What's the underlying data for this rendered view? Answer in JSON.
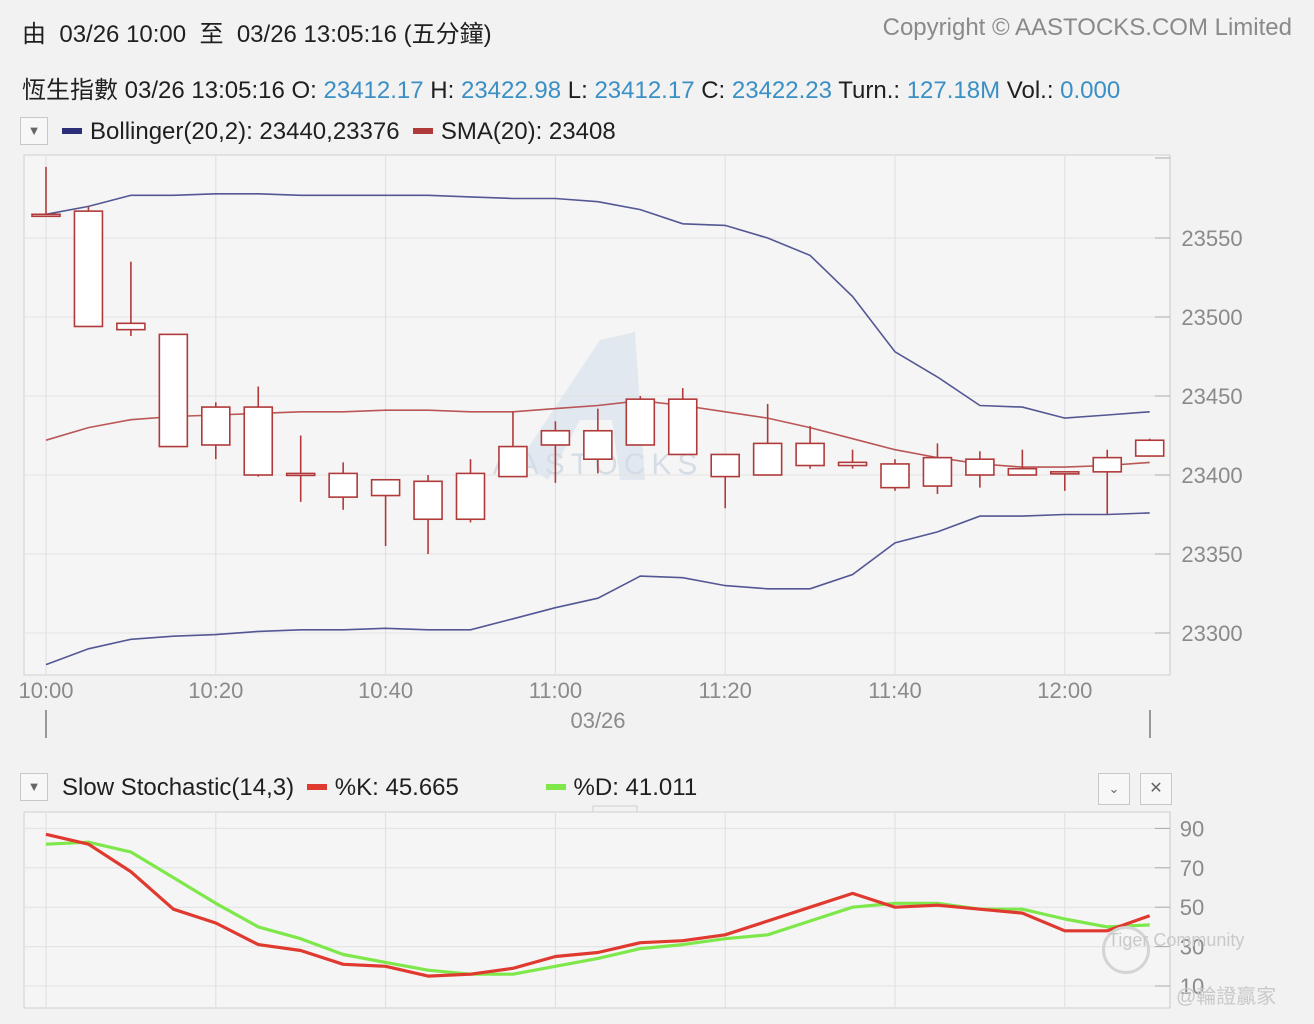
{
  "header": {
    "from_label": "由",
    "from_time": "03/26 10:00",
    "to_label": "至",
    "to_time": "03/26 13:05:16",
    "interval": "(五分鐘)",
    "copyright": "Copyright © AASTOCKS.COM Limited"
  },
  "quote": {
    "index_name": "恆生指數",
    "timestamp": "03/26 13:05:16",
    "open_label": "O:",
    "open": "23412.17",
    "high_label": "H:",
    "high": "23422.98",
    "low_label": "L:",
    "low": "23412.17",
    "close_label": "C:",
    "close": "23422.23",
    "turnover_label": "Turn.:",
    "turnover": "127.18M",
    "volume_label": "Vol.:",
    "volume": "0.000"
  },
  "main_legend": {
    "bollinger": "Bollinger(20,2): 23440,23376",
    "sma": "SMA(20): 23408",
    "bollinger_color": "#2b2f7a",
    "sma_color": "#b03a3a"
  },
  "stoch_legend": {
    "title": "Slow Stochastic(14,3)",
    "k": "%K: 45.665",
    "d": "%D: 41.011",
    "k_color": "#e03a30",
    "d_color": "#7ee84a"
  },
  "watermark": {
    "chart_logo": "AASTOCKS",
    "community": "Tiger Community",
    "author": "@輪證贏家"
  },
  "chart_data": [
    {
      "type": "candlestick",
      "x_ticks": [
        "10:00",
        "10:20",
        "10:40",
        "11:00",
        "11:20",
        "11:40",
        "12:00"
      ],
      "x_date": "03/26",
      "y_ticks": [
        23300,
        23350,
        23400,
        23450,
        23500,
        23550
      ],
      "ylim": [
        23275,
        23600
      ],
      "grid": true,
      "candles": [
        {
          "t": "10:00",
          "o": 23565,
          "h": 23595,
          "l": 23565,
          "c": 23565
        },
        {
          "t": "10:05",
          "o": 23494,
          "h": 23570,
          "l": 23494,
          "c": 23567
        },
        {
          "t": "10:10",
          "o": 23492,
          "h": 23535,
          "l": 23488,
          "c": 23496
        },
        {
          "t": "10:15",
          "o": 23418,
          "h": 23489,
          "l": 23418,
          "c": 23489
        },
        {
          "t": "10:20",
          "o": 23419,
          "h": 23446,
          "l": 23410,
          "c": 23443
        },
        {
          "t": "10:25",
          "o": 23400,
          "h": 23456,
          "l": 23399,
          "c": 23443
        },
        {
          "t": "10:30",
          "o": 23400,
          "h": 23425,
          "l": 23383,
          "c": 23401
        },
        {
          "t": "10:35",
          "o": 23386,
          "h": 23408,
          "l": 23378,
          "c": 23401
        },
        {
          "t": "10:40",
          "o": 23387,
          "h": 23397,
          "l": 23355,
          "c": 23397
        },
        {
          "t": "10:45",
          "o": 23372,
          "h": 23400,
          "l": 23350,
          "c": 23396
        },
        {
          "t": "10:50",
          "o": 23372,
          "h": 23410,
          "l": 23370,
          "c": 23401
        },
        {
          "t": "10:55",
          "o": 23399,
          "h": 23440,
          "l": 23399,
          "c": 23418
        },
        {
          "t": "11:00",
          "o": 23419,
          "h": 23434,
          "l": 23395,
          "c": 23428
        },
        {
          "t": "11:05",
          "o": 23410,
          "h": 23442,
          "l": 23401,
          "c": 23428
        },
        {
          "t": "11:10",
          "o": 23419,
          "h": 23450,
          "l": 23419,
          "c": 23448
        },
        {
          "t": "11:15",
          "o": 23413,
          "h": 23455,
          "l": 23413,
          "c": 23448
        },
        {
          "t": "11:20",
          "o": 23399,
          "h": 23413,
          "l": 23379,
          "c": 23413
        },
        {
          "t": "11:25",
          "o": 23400,
          "h": 23445,
          "l": 23400,
          "c": 23420
        },
        {
          "t": "11:30",
          "o": 23406,
          "h": 23431,
          "l": 23404,
          "c": 23420
        },
        {
          "t": "11:35",
          "o": 23406,
          "h": 23416,
          "l": 23404,
          "c": 23408
        },
        {
          "t": "11:40",
          "o": 23392,
          "h": 23410,
          "l": 23390,
          "c": 23407
        },
        {
          "t": "11:45",
          "o": 23393,
          "h": 23420,
          "l": 23388,
          "c": 23411
        },
        {
          "t": "11:50",
          "o": 23400,
          "h": 23415,
          "l": 23392,
          "c": 23410
        },
        {
          "t": "11:55",
          "o": 23400,
          "h": 23416,
          "l": 23400,
          "c": 23404
        },
        {
          "t": "12:00",
          "o": 23402,
          "h": 23402,
          "l": 23390,
          "c": 23402
        },
        {
          "t": "12:05",
          "o": 23402,
          "h": 23416,
          "l": 23375,
          "c": 23411
        },
        {
          "t": "12:10",
          "o": 23412,
          "h": 23423,
          "l": 23412,
          "c": 23422
        }
      ],
      "series": [
        {
          "values": [
            23565,
            23570,
            23577,
            23577,
            23578,
            23578,
            23577,
            23577,
            23577,
            23577,
            23576,
            23575,
            23575,
            23573,
            23568,
            23559,
            23558,
            23550,
            23539,
            23513,
            23478,
            23462,
            23444,
            23443,
            23436,
            23438,
            23440
          ]
        },
        {
          "values": [
            23422,
            23430,
            23435,
            23437,
            23438,
            23439,
            23440,
            23440,
            23441,
            23441,
            23440,
            23440,
            23442,
            23444,
            23447,
            23444,
            23440,
            23436,
            23430,
            23423,
            23416,
            23411,
            23407,
            23405,
            23405,
            23406,
            23408
          ]
        },
        {
          "values": [
            23280,
            23290,
            23296,
            23298,
            23299,
            23301,
            23302,
            23302,
            23303,
            23302,
            23302,
            23309,
            23316,
            23322,
            23336,
            23335,
            23330,
            23328,
            23328,
            23337,
            23357,
            23364,
            23374,
            23374,
            23375,
            23375,
            23376
          ]
        }
      ]
    },
    {
      "type": "line",
      "y_ticks": [
        10,
        30,
        50,
        70,
        90
      ],
      "ylim": [
        0,
        100
      ],
      "grid": true,
      "series": [
        {
          "values": [
            87,
            82,
            68,
            49,
            42,
            31,
            28,
            21,
            20,
            15,
            16,
            19,
            25,
            27,
            32,
            33,
            36,
            43,
            50,
            57,
            50,
            51,
            49,
            47,
            38,
            38,
            45.665
          ]
        },
        {
          "values": [
            82,
            83,
            78,
            65,
            52,
            40,
            34,
            26,
            22,
            18,
            16,
            16,
            20,
            24,
            29,
            31,
            34,
            36,
            43,
            50,
            52,
            52,
            49,
            49,
            44,
            40,
            41.011
          ]
        }
      ]
    }
  ]
}
